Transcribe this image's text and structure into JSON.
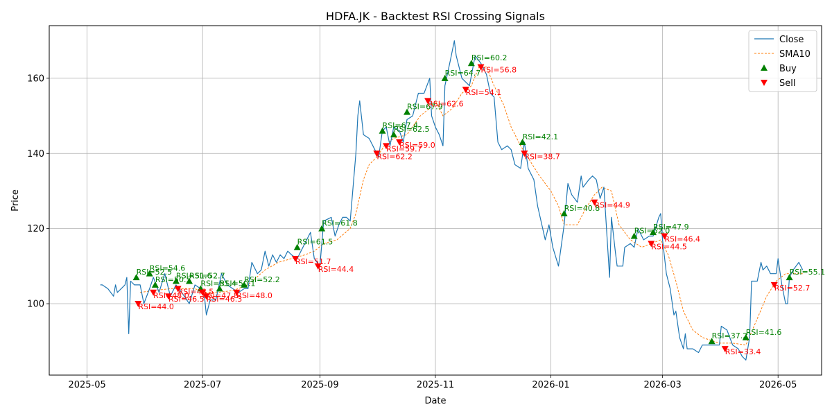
{
  "chart_data": {
    "type": "line",
    "title": "HDFA.JK - Backtest RSI Crossing Signals",
    "xlabel": "Date",
    "ylabel": "Price",
    "xlim": [
      "2025-04-11",
      "2026-05-24"
    ],
    "ylim": [
      81,
      174
    ],
    "grid": true,
    "legend_position": "top-right",
    "x_ticks": [
      "2025-05",
      "2025-07",
      "2025-09",
      "2025-11",
      "2026-01",
      "2026-03",
      "2026-05"
    ],
    "y_ticks": [
      100,
      120,
      140,
      160
    ],
    "colors": {
      "close": "#1f77b4",
      "sma": "#ff7f0e",
      "buy": "#008000",
      "sell": "#ff0000"
    },
    "legend": [
      "Close",
      "SMA10",
      "Buy",
      "Sell"
    ],
    "close": [
      [
        "2025-05-08",
        105
      ],
      [
        "2025-05-09",
        105
      ],
      [
        "2025-05-12",
        104
      ],
      [
        "2025-05-15",
        102
      ],
      [
        "2025-05-16",
        105
      ],
      [
        "2025-05-17",
        103
      ],
      [
        "2025-05-21",
        105
      ],
      [
        "2025-05-22",
        107
      ],
      [
        "2025-05-23",
        92
      ],
      [
        "2025-05-24",
        106
      ],
      [
        "2025-05-26",
        105
      ],
      [
        "2025-05-29",
        105
      ],
      [
        "2025-05-31",
        100
      ],
      [
        "2025-06-03",
        104
      ],
      [
        "2025-06-05",
        107
      ],
      [
        "2025-06-08",
        103
      ],
      [
        "2025-06-11",
        108
      ],
      [
        "2025-06-14",
        102
      ],
      [
        "2025-06-17",
        105
      ],
      [
        "2025-06-20",
        103
      ],
      [
        "2025-06-24",
        100
      ],
      [
        "2025-06-27",
        105
      ],
      [
        "2025-06-30",
        104
      ],
      [
        "2025-07-02",
        102
      ],
      [
        "2025-07-03",
        97
      ],
      [
        "2025-07-05",
        101
      ],
      [
        "2025-07-08",
        101
      ],
      [
        "2025-07-11",
        108
      ],
      [
        "2025-07-14",
        105
      ],
      [
        "2025-07-17",
        104
      ],
      [
        "2025-07-20",
        103
      ],
      [
        "2025-07-23",
        104
      ],
      [
        "2025-07-25",
        104
      ],
      [
        "2025-07-27",
        111
      ],
      [
        "2025-07-30",
        108
      ],
      [
        "2025-08-01",
        109
      ],
      [
        "2025-08-03",
        114
      ],
      [
        "2025-08-05",
        110
      ],
      [
        "2025-08-07",
        113
      ],
      [
        "2025-08-09",
        111
      ],
      [
        "2025-08-11",
        113
      ],
      [
        "2025-08-13",
        112
      ],
      [
        "2025-08-15",
        114
      ],
      [
        "2025-08-17",
        113
      ],
      [
        "2025-08-20",
        112
      ],
      [
        "2025-08-22",
        114
      ],
      [
        "2025-08-24",
        116
      ],
      [
        "2025-08-27",
        119
      ],
      [
        "2025-08-29",
        112
      ],
      [
        "2025-09-01",
        110
      ],
      [
        "2025-09-03",
        122
      ],
      [
        "2025-09-07",
        123
      ],
      [
        "2025-09-09",
        118
      ],
      [
        "2025-09-11",
        121
      ],
      [
        "2025-09-13",
        123
      ],
      [
        "2025-09-15",
        123
      ],
      [
        "2025-09-17",
        122
      ],
      [
        "2025-09-20",
        140
      ],
      [
        "2025-09-21",
        150
      ],
      [
        "2025-09-22",
        154
      ],
      [
        "2025-09-24",
        145
      ],
      [
        "2025-09-27",
        144
      ],
      [
        "2025-09-30",
        141
      ],
      [
        "2025-10-02",
        139
      ],
      [
        "2025-10-04",
        146
      ],
      [
        "2025-10-06",
        147
      ],
      [
        "2025-10-08",
        142
      ],
      [
        "2025-10-10",
        147
      ],
      [
        "2025-10-13",
        146
      ],
      [
        "2025-10-15",
        143
      ],
      [
        "2025-10-17",
        149
      ],
      [
        "2025-10-20",
        150
      ],
      [
        "2025-10-23",
        156
      ],
      [
        "2025-10-26",
        156
      ],
      [
        "2025-10-29",
        160
      ],
      [
        "2025-10-30",
        150
      ],
      [
        "2025-11-01",
        147
      ],
      [
        "2025-11-03",
        145
      ],
      [
        "2025-11-05",
        142
      ],
      [
        "2025-11-06",
        158
      ],
      [
        "2025-11-09",
        165
      ],
      [
        "2025-11-11",
        170
      ],
      [
        "2025-11-12",
        166
      ],
      [
        "2025-11-15",
        160
      ],
      [
        "2025-11-19",
        158
      ],
      [
        "2025-11-22",
        166
      ],
      [
        "2025-11-25",
        164
      ],
      [
        "2025-11-28",
        161
      ],
      [
        "2025-11-30",
        156
      ],
      [
        "2025-12-02",
        155
      ],
      [
        "2025-12-04",
        143
      ],
      [
        "2025-12-06",
        141
      ],
      [
        "2025-12-09",
        142
      ],
      [
        "2025-12-11",
        141
      ],
      [
        "2025-12-13",
        137
      ],
      [
        "2025-12-16",
        136
      ],
      [
        "2025-12-18",
        143
      ],
      [
        "2025-12-20",
        136
      ],
      [
        "2025-12-23",
        133
      ],
      [
        "2025-12-25",
        126
      ],
      [
        "2025-12-29",
        117
      ],
      [
        "2025-12-31",
        121
      ],
      [
        "2026-01-02",
        115
      ],
      [
        "2026-01-05",
        110
      ],
      [
        "2026-01-08",
        121
      ],
      [
        "2026-01-10",
        132
      ],
      [
        "2026-01-12",
        129
      ],
      [
        "2026-01-15",
        127
      ],
      [
        "2026-01-17",
        134
      ],
      [
        "2026-01-18",
        131
      ],
      [
        "2026-01-21",
        133
      ],
      [
        "2026-01-23",
        134
      ],
      [
        "2026-01-25",
        133
      ],
      [
        "2026-01-27",
        128
      ],
      [
        "2026-01-29",
        131
      ],
      [
        "2026-02-01",
        107
      ],
      [
        "2026-02-02",
        123
      ],
      [
        "2026-02-04",
        114
      ],
      [
        "2026-02-05",
        110
      ],
      [
        "2026-02-08",
        110
      ],
      [
        "2026-02-09",
        115
      ],
      [
        "2026-02-12",
        116
      ],
      [
        "2026-02-14",
        115
      ],
      [
        "2026-02-16",
        120
      ],
      [
        "2026-02-19",
        117
      ],
      [
        "2026-02-22",
        118
      ],
      [
        "2026-02-24",
        118
      ],
      [
        "2026-02-27",
        123
      ],
      [
        "2026-02-28",
        124
      ],
      [
        "2026-03-01",
        117
      ],
      [
        "2026-03-03",
        108
      ],
      [
        "2026-03-05",
        104
      ],
      [
        "2026-03-07",
        97
      ],
      [
        "2026-03-08",
        98
      ],
      [
        "2026-03-10",
        91
      ],
      [
        "2026-03-12",
        88
      ],
      [
        "2026-03-13",
        92
      ],
      [
        "2026-03-14",
        88
      ],
      [
        "2026-03-17",
        88
      ],
      [
        "2026-03-20",
        87
      ],
      [
        "2026-03-22",
        89
      ],
      [
        "2026-03-25",
        89
      ],
      [
        "2026-03-28",
        89
      ],
      [
        "2026-03-31",
        89
      ],
      [
        "2026-04-01",
        94
      ],
      [
        "2026-04-04",
        93
      ],
      [
        "2026-04-07",
        89
      ],
      [
        "2026-04-10",
        88
      ],
      [
        "2026-04-12",
        86
      ],
      [
        "2026-04-14",
        85
      ],
      [
        "2026-04-16",
        91
      ],
      [
        "2026-04-17",
        106
      ],
      [
        "2026-04-20",
        106
      ],
      [
        "2026-04-22",
        111
      ],
      [
        "2026-04-23",
        109
      ],
      [
        "2026-04-25",
        110
      ],
      [
        "2026-04-27",
        108
      ],
      [
        "2026-04-30",
        108
      ],
      [
        "2026-05-01",
        112
      ],
      [
        "2026-05-03",
        105
      ],
      [
        "2026-05-05",
        100
      ],
      [
        "2026-05-06",
        100
      ],
      [
        "2026-05-07",
        107
      ],
      [
        "2026-05-09",
        109
      ],
      [
        "2026-05-12",
        111
      ],
      [
        "2026-05-14",
        109
      ]
    ],
    "sma10": [
      [
        "2025-05-29",
        103
      ],
      [
        "2025-06-05",
        103.5
      ],
      [
        "2025-06-14",
        104
      ],
      [
        "2025-06-20",
        104
      ],
      [
        "2025-06-27",
        104
      ],
      [
        "2025-07-02",
        103
      ],
      [
        "2025-07-09",
        103
      ],
      [
        "2025-07-17",
        103.5
      ],
      [
        "2025-07-25",
        105
      ],
      [
        "2025-08-03",
        109
      ],
      [
        "2025-08-10",
        111
      ],
      [
        "2025-08-17",
        112
      ],
      [
        "2025-08-24",
        113
      ],
      [
        "2025-08-29",
        114
      ],
      [
        "2025-09-03",
        116
      ],
      [
        "2025-09-10",
        117
      ],
      [
        "2025-09-17",
        120
      ],
      [
        "2025-09-20",
        124
      ],
      [
        "2025-09-24",
        133
      ],
      [
        "2025-09-27",
        137
      ],
      [
        "2025-10-01",
        139
      ],
      [
        "2025-10-05",
        142
      ],
      [
        "2025-10-10",
        144
      ],
      [
        "2025-10-17",
        145
      ],
      [
        "2025-10-24",
        150
      ],
      [
        "2025-10-29",
        152
      ],
      [
        "2025-11-01",
        154
      ],
      [
        "2025-11-05",
        150
      ],
      [
        "2025-11-10",
        152
      ],
      [
        "2025-11-15",
        156
      ],
      [
        "2025-11-20",
        158
      ],
      [
        "2025-11-24",
        163
      ],
      [
        "2025-11-28",
        163
      ],
      [
        "2025-12-02",
        158
      ],
      [
        "2025-12-07",
        153
      ],
      [
        "2025-12-11",
        147
      ],
      [
        "2025-12-16",
        142
      ],
      [
        "2025-12-21",
        138
      ],
      [
        "2025-12-26",
        134
      ],
      [
        "2026-01-01",
        130
      ],
      [
        "2026-01-05",
        126
      ],
      [
        "2026-01-08",
        121
      ],
      [
        "2026-01-12",
        121
      ],
      [
        "2026-01-15",
        121
      ],
      [
        "2026-01-19",
        125
      ],
      [
        "2026-01-24",
        129
      ],
      [
        "2026-01-28",
        131
      ],
      [
        "2026-02-02",
        130
      ],
      [
        "2026-02-06",
        121
      ],
      [
        "2026-02-12",
        117
      ],
      [
        "2026-02-18",
        115
      ],
      [
        "2026-02-23",
        116
      ],
      [
        "2026-02-28",
        117
      ],
      [
        "2026-03-04",
        113
      ],
      [
        "2026-03-08",
        106
      ],
      [
        "2026-03-12",
        98
      ],
      [
        "2026-03-17",
        93
      ],
      [
        "2026-03-22",
        91
      ],
      [
        "2026-03-31",
        89.5
      ],
      [
        "2026-04-07",
        89.5
      ],
      [
        "2026-04-14",
        89
      ],
      [
        "2026-04-20",
        96
      ],
      [
        "2026-04-25",
        102
      ],
      [
        "2026-04-30",
        106
      ],
      [
        "2026-05-05",
        108
      ],
      [
        "2026-05-10",
        108
      ],
      [
        "2026-05-14",
        108
      ]
    ],
    "buy_signals": [
      {
        "date": "2025-05-27",
        "price": 107,
        "rsi": "RSI=52.5"
      },
      {
        "date": "2025-06-03",
        "price": 108,
        "rsi": "RSI=54.6"
      },
      {
        "date": "2025-06-06",
        "price": 105,
        "rsi": "RSI=50.5"
      },
      {
        "date": "2025-06-17",
        "price": 106,
        "rsi": "RSI=51.6"
      },
      {
        "date": "2025-06-24",
        "price": 106,
        "rsi": "RSI=52.7"
      },
      {
        "date": "2025-06-30",
        "price": 104,
        "rsi": "RSI=51.4"
      },
      {
        "date": "2025-07-10",
        "price": 104,
        "rsi": "RSI=50.1"
      },
      {
        "date": "2025-07-23",
        "price": 105,
        "rsi": "RSI=52.2"
      },
      {
        "date": "2025-08-20",
        "price": 115,
        "rsi": "RSI=61.5"
      },
      {
        "date": "2025-09-02",
        "price": 120,
        "rsi": "RSI=61.8"
      },
      {
        "date": "2025-10-04",
        "price": 146,
        "rsi": "RSI=67.4"
      },
      {
        "date": "2025-10-10",
        "price": 145,
        "rsi": "RSI=62.5"
      },
      {
        "date": "2025-10-17",
        "price": 151,
        "rsi": "RSI=67.9"
      },
      {
        "date": "2025-11-06",
        "price": 160,
        "rsi": "RSI=64.7"
      },
      {
        "date": "2025-11-20",
        "price": 164,
        "rsi": "RSI=60.2"
      },
      {
        "date": "2025-12-17",
        "price": 143,
        "rsi": "RSI=42.1"
      },
      {
        "date": "2026-01-08",
        "price": 124,
        "rsi": "RSI=40.8"
      },
      {
        "date": "2026-02-14",
        "price": 118,
        "rsi": "RSI=52.0"
      },
      {
        "date": "2026-02-24",
        "price": 119,
        "rsi": "RSI=47.9"
      },
      {
        "date": "2026-03-27",
        "price": 90,
        "rsi": "RSI=37.2"
      },
      {
        "date": "2026-04-14",
        "price": 91,
        "rsi": "RSI=41.6"
      },
      {
        "date": "2026-05-07",
        "price": 107,
        "rsi": "RSI=55.1"
      }
    ],
    "sell_signals": [
      {
        "date": "2025-05-28",
        "price": 100,
        "rsi": "RSI=44.0"
      },
      {
        "date": "2025-06-05",
        "price": 103,
        "rsi": "RSI=48.0"
      },
      {
        "date": "2025-06-13",
        "price": 102,
        "rsi": "RSI=46.5"
      },
      {
        "date": "2025-06-18",
        "price": 104,
        "rsi": "RSI=48.5"
      },
      {
        "date": "2025-07-01",
        "price": 103,
        "rsi": "RSI=47.8"
      },
      {
        "date": "2025-07-03",
        "price": 102,
        "rsi": "RSI=46.3"
      },
      {
        "date": "2025-07-19",
        "price": 103,
        "rsi": "RSI=48.0"
      },
      {
        "date": "2025-08-19",
        "price": 112,
        "rsi": "RSI=51.7"
      },
      {
        "date": "2025-08-31",
        "price": 110,
        "rsi": "RSI=44.4"
      },
      {
        "date": "2025-10-01",
        "price": 140,
        "rsi": "RSI=62.2"
      },
      {
        "date": "2025-10-06",
        "price": 142,
        "rsi": "RSI=59.7"
      },
      {
        "date": "2025-10-13",
        "price": 143,
        "rsi": "RSI=59.0"
      },
      {
        "date": "2025-10-28",
        "price": 154,
        "rsi": "RSI=62.6"
      },
      {
        "date": "2025-11-17",
        "price": 157,
        "rsi": "RSI=54.1"
      },
      {
        "date": "2025-11-25",
        "price": 163,
        "rsi": "RSI=56.8"
      },
      {
        "date": "2025-12-18",
        "price": 140,
        "rsi": "RSI=38.7"
      },
      {
        "date": "2026-01-24",
        "price": 127,
        "rsi": "RSI=44.9"
      },
      {
        "date": "2026-02-23",
        "price": 116,
        "rsi": "RSI=44.5"
      },
      {
        "date": "2026-03-02",
        "price": 118,
        "rsi": "RSI=46.4"
      },
      {
        "date": "2026-04-03",
        "price": 88,
        "rsi": "RSI=33.4"
      },
      {
        "date": "2026-04-29",
        "price": 105,
        "rsi": "RSI=52.7"
      }
    ]
  }
}
